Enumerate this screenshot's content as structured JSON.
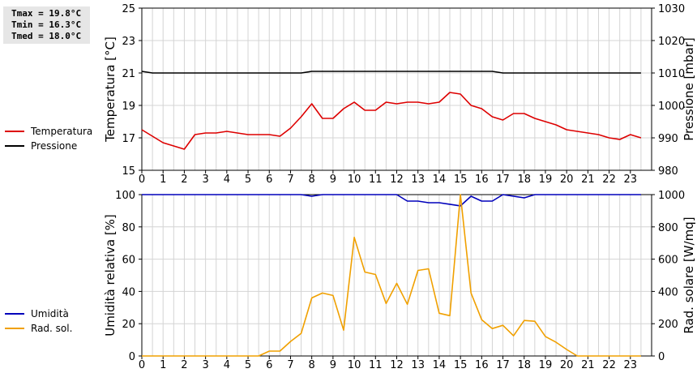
{
  "stats": {
    "tmax": "Tmax = 19.8°C",
    "tmin": "Tmin = 16.3°C",
    "tmed": "Tmed = 18.0°C"
  },
  "chart_data": [
    {
      "type": "line",
      "x": [
        0,
        0.5,
        1,
        1.5,
        2,
        2.5,
        3,
        3.5,
        4,
        4.5,
        5,
        5.5,
        6,
        6.5,
        7,
        7.5,
        8,
        8.5,
        9,
        9.5,
        10,
        10.5,
        11,
        11.5,
        12,
        12.5,
        13,
        13.5,
        14,
        14.5,
        15,
        15.5,
        16,
        16.5,
        17,
        17.5,
        18,
        18.5,
        19,
        19.5,
        20,
        20.5,
        21,
        21.5,
        22,
        22.5,
        23,
        23.5
      ],
      "xlim": [
        0,
        24
      ],
      "x_ticks": [
        "0",
        "1",
        "2",
        "3",
        "4",
        "5",
        "6",
        "7",
        "8",
        "9",
        "10",
        "11",
        "12",
        "13",
        "14",
        "15",
        "16",
        "17",
        "18",
        "19",
        "20",
        "21",
        "22",
        "23"
      ],
      "grid": true,
      "series": [
        {
          "name": "Temperatura",
          "color": "#dd0000",
          "axis": "left",
          "values": [
            17.5,
            17.1,
            16.7,
            16.5,
            16.3,
            17.2,
            17.3,
            17.3,
            17.4,
            17.3,
            17.2,
            17.2,
            17.2,
            17.1,
            17.6,
            18.3,
            19.1,
            18.2,
            18.2,
            18.8,
            19.2,
            18.7,
            18.7,
            19.2,
            19.1,
            19.2,
            19.2,
            19.1,
            19.2,
            19.8,
            19.7,
            19.0,
            18.8,
            18.3,
            18.1,
            18.5,
            18.5,
            18.2,
            18.0,
            17.8,
            17.5,
            17.4,
            17.3,
            17.2,
            17.0,
            16.9,
            17.2,
            17.0
          ]
        },
        {
          "name": "Pressione",
          "color": "#000000",
          "axis": "right",
          "values": [
            1010.5,
            1010.0,
            1010.0,
            1010.0,
            1010.0,
            1010.0,
            1010.0,
            1010.0,
            1010.0,
            1010.0,
            1010.0,
            1010.0,
            1010.0,
            1010.0,
            1010.0,
            1010.0,
            1010.5,
            1010.5,
            1010.5,
            1010.5,
            1010.5,
            1010.5,
            1010.5,
            1010.5,
            1010.5,
            1010.5,
            1010.5,
            1010.5,
            1010.5,
            1010.5,
            1010.5,
            1010.5,
            1010.5,
            1010.5,
            1010.0,
            1010.0,
            1010.0,
            1010.0,
            1010.0,
            1010.0,
            1010.0,
            1010.0,
            1010.0,
            1010.0,
            1010.0,
            1010.0,
            1010.0,
            1010.0
          ]
        }
      ],
      "ylabel": "Temperatura [°C]",
      "ylim": [
        15,
        25
      ],
      "y_ticks": [
        "15",
        "17",
        "19",
        "21",
        "23",
        "25"
      ],
      "y2label": "Pressione [mbar]",
      "y2lim": [
        980,
        1030
      ],
      "y2_ticks": [
        "980",
        "990",
        "1000",
        "1010",
        "1020",
        "1030"
      ]
    },
    {
      "type": "line",
      "x": [
        0,
        0.5,
        1,
        1.5,
        2,
        2.5,
        3,
        3.5,
        4,
        4.5,
        5,
        5.5,
        6,
        6.5,
        7,
        7.5,
        8,
        8.5,
        9,
        9.5,
        10,
        10.5,
        11,
        11.5,
        12,
        12.5,
        13,
        13.5,
        14,
        14.5,
        15,
        15.5,
        16,
        16.5,
        17,
        17.5,
        18,
        18.5,
        19,
        19.5,
        20,
        20.5,
        21,
        21.5,
        22,
        22.5,
        23,
        23.5
      ],
      "xlim": [
        0,
        24
      ],
      "x_ticks": [
        "0",
        "1",
        "2",
        "3",
        "4",
        "5",
        "6",
        "7",
        "8",
        "9",
        "10",
        "11",
        "12",
        "13",
        "14",
        "15",
        "16",
        "17",
        "18",
        "19",
        "20",
        "21",
        "22",
        "23"
      ],
      "grid": true,
      "series": [
        {
          "name": "Umidità",
          "color": "#0000bb",
          "axis": "left",
          "values": [
            100,
            100,
            100,
            100,
            100,
            100,
            100,
            100,
            100,
            100,
            100,
            100,
            100,
            100,
            100,
            100,
            99,
            100,
            100,
            100,
            100,
            100,
            100,
            100,
            100,
            96,
            96,
            95,
            95,
            94,
            93,
            99,
            96,
            96,
            100,
            99,
            98,
            100,
            100,
            100,
            100,
            100,
            100,
            100,
            100,
            100,
            100,
            100
          ]
        },
        {
          "name": "Rad. sol.",
          "color": "#f0a000",
          "axis": "right",
          "values": [
            0,
            0,
            0,
            0,
            0,
            0,
            0,
            0,
            0,
            0,
            0,
            0,
            30,
            30,
            90,
            140,
            360,
            390,
            375,
            160,
            735,
            520,
            505,
            325,
            450,
            320,
            530,
            540,
            265,
            250,
            1000,
            390,
            225,
            170,
            190,
            125,
            220,
            215,
            120,
            85,
            40,
            0,
            0,
            0,
            0,
            0,
            0,
            0
          ]
        }
      ],
      "ylabel": "Umidità relativa [%]",
      "ylim": [
        0,
        100
      ],
      "y_ticks": [
        "0",
        "20",
        "40",
        "60",
        "80",
        "100"
      ],
      "y2label": "Rad. solare [W/mq]",
      "y2lim": [
        0,
        1000
      ],
      "y2_ticks": [
        "0",
        "200",
        "400",
        "600",
        "800",
        "1000"
      ]
    }
  ]
}
